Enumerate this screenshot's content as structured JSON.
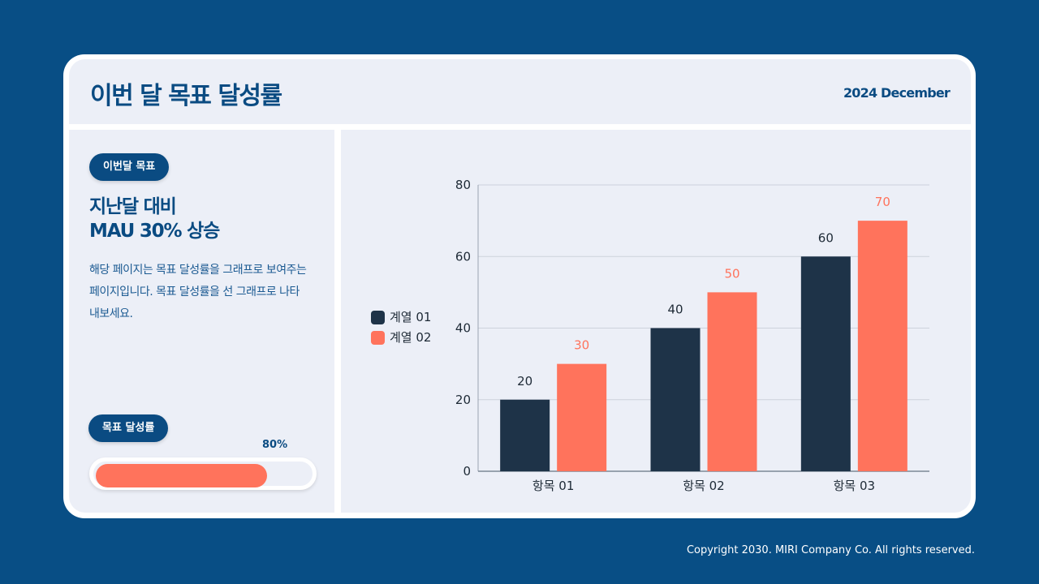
{
  "header": {
    "title": "이번 달 목표 달성률",
    "date": "2024 December"
  },
  "left": {
    "badge": "이번달 목표",
    "headline_line1": "지난달 대비",
    "headline_line2": "MAU 30% 상승",
    "description": "해당 페이지는 목표 달성률을 그래프로 보여주는 페이지입니다. 목표 달성률을 선 그래프로 나타내보세요.",
    "progress_label": "목표 달성률",
    "progress_text": "80%",
    "progress_value": 80
  },
  "footer": {
    "copyright": "Copyright 2030. MIRI Company  Co. All rights reserved."
  },
  "colors": {
    "background": "#084e85",
    "series1": "#1e3348",
    "series2": "#ff735c",
    "accent": "#0a4b82"
  },
  "chart_data": {
    "type": "bar",
    "categories": [
      "항목 01",
      "항목 02",
      "항목 03"
    ],
    "series": [
      {
        "name": "계열 01",
        "values": [
          20,
          40,
          60
        ]
      },
      {
        "name": "계열 02",
        "values": [
          30,
          50,
          70
        ]
      }
    ],
    "ylim": [
      0,
      80
    ],
    "yticks": [
      0,
      20,
      40,
      60,
      80
    ],
    "grid": true,
    "legend": "left",
    "data_labels": true
  }
}
